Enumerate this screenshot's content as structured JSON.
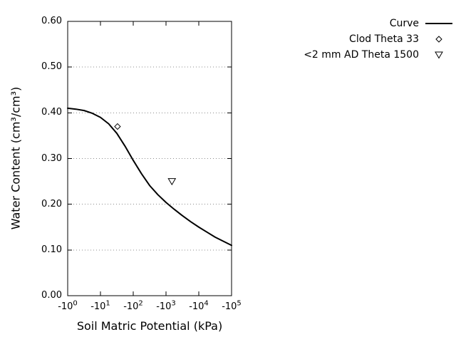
{
  "colors": {
    "background": "#ffffff",
    "foreground": "#000000",
    "grid": "#8c8c8c"
  },
  "chart_data": {
    "type": "line",
    "title": "",
    "xlabel": "Soil Matric Potential (kPa)",
    "ylabel": "Water Content (cm³/cm³)",
    "x_axis": {
      "scale": "negative-log10",
      "log_range": [
        0,
        5
      ],
      "ticks": [
        {
          "base": "-10",
          "exp": "0"
        },
        {
          "base": "-10",
          "exp": "1"
        },
        {
          "base": "-10",
          "exp": "2"
        },
        {
          "base": "-10",
          "exp": "3"
        },
        {
          "base": "-10",
          "exp": "4"
        },
        {
          "base": "-10",
          "exp": "5"
        }
      ]
    },
    "y_axis": {
      "range": [
        0,
        0.6
      ],
      "ticks": [
        "0.00",
        "0.10",
        "0.20",
        "0.30",
        "0.40",
        "0.50",
        "0.60"
      ],
      "grid": "dotted-horizontal"
    },
    "legend": {
      "position": "top-right-outside",
      "order": [
        "Curve",
        "Clod Theta 33",
        "<2 mm AD Theta 1500"
      ]
    },
    "series": [
      {
        "name": "Curve",
        "type": "line",
        "color": "#000000",
        "points_log10kpa_theta": [
          [
            0.0,
            0.41
          ],
          [
            0.25,
            0.408
          ],
          [
            0.5,
            0.405
          ],
          [
            0.75,
            0.399
          ],
          [
            1.0,
            0.39
          ],
          [
            1.25,
            0.376
          ],
          [
            1.5,
            0.355
          ],
          [
            1.75,
            0.327
          ],
          [
            2.0,
            0.296
          ],
          [
            2.25,
            0.267
          ],
          [
            2.5,
            0.241
          ],
          [
            2.75,
            0.221
          ],
          [
            3.0,
            0.204
          ],
          [
            3.25,
            0.189
          ],
          [
            3.5,
            0.175
          ],
          [
            3.75,
            0.162
          ],
          [
            4.0,
            0.15
          ],
          [
            4.25,
            0.139
          ],
          [
            4.5,
            0.128
          ],
          [
            4.75,
            0.119
          ],
          [
            5.0,
            0.11
          ]
        ]
      },
      {
        "name": "Clod Theta 33",
        "type": "scatter",
        "marker": "diamond",
        "color": "#000000",
        "points": [
          {
            "kpa": 33,
            "log10_kpa": 1.52,
            "theta": 0.37
          }
        ]
      },
      {
        "name": "<2 mm AD Theta 1500",
        "type": "scatter",
        "marker": "triangle-down",
        "color": "#000000",
        "points": [
          {
            "kpa": 1500,
            "log10_kpa": 3.18,
            "theta": 0.25
          }
        ]
      }
    ]
  }
}
